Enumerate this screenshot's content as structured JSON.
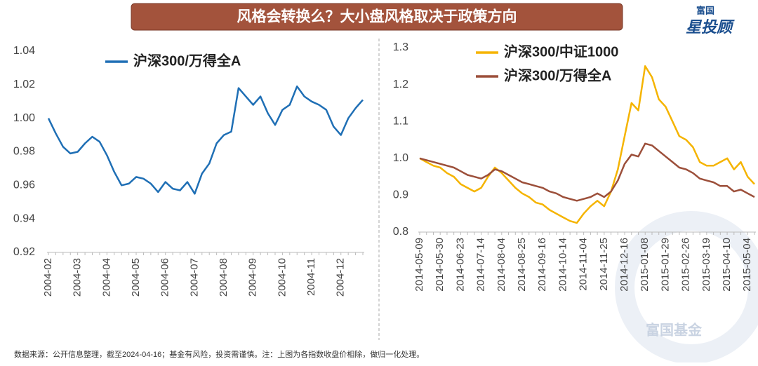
{
  "title": "风格会转换么？大小盘风格取决于政策方向",
  "logo": {
    "top": "富国",
    "main": "星投顾",
    "watermark": "富国基金"
  },
  "footnote": "数据来源：公开信息整理，截至2024-04-16；基金有风险，投资需谨慎。注：上图为各指数收盘价相除，做归一化处理。",
  "chart_data": [
    {
      "type": "line",
      "legend": "top-left",
      "grid": false,
      "categories": [
        "2004-02",
        null,
        null,
        null,
        "2004-03",
        null,
        null,
        null,
        "2004-04",
        null,
        null,
        null,
        "2004-05",
        null,
        null,
        null,
        "2004-06",
        null,
        null,
        null,
        "2004-07",
        null,
        null,
        null,
        "2004-08",
        null,
        null,
        null,
        "2004-09",
        null,
        null,
        null,
        "2004-10",
        null,
        null,
        null,
        "2004-11",
        null,
        null,
        null,
        "2004-12",
        null,
        null,
        null
      ],
      "series": [
        {
          "name": "沪深300/万得全A",
          "color": "#1f6fb5",
          "values": [
            1.0,
            0.991,
            0.983,
            0.979,
            0.98,
            0.985,
            0.989,
            0.986,
            0.978,
            0.968,
            0.96,
            0.961,
            0.965,
            0.964,
            0.961,
            0.956,
            0.962,
            0.958,
            0.957,
            0.962,
            0.955,
            0.967,
            0.973,
            0.985,
            0.99,
            0.992,
            1.018,
            1.013,
            1.008,
            1.013,
            1.003,
            0.996,
            1.005,
            1.008,
            1.019,
            1.013,
            1.01,
            1.008,
            1.005,
            0.995,
            0.99,
            1.0,
            1.006,
            1.011
          ]
        }
      ],
      "ylim": [
        0.92,
        1.04
      ],
      "yticks": [
        0.92,
        0.94,
        0.96,
        0.98,
        {
          "value": 1,
          "label": "1.00"
        },
        1.02,
        1.04
      ]
    },
    {
      "type": "line",
      "legend": "top-left",
      "grid": false,
      "categories": [
        "2014-05-09",
        null,
        null,
        "2014-05-30",
        null,
        null,
        "2014-06-23",
        null,
        null,
        "2014-07-14",
        null,
        null,
        "2014-08-04",
        null,
        null,
        "2014-08-25",
        null,
        null,
        "2014-09-16",
        null,
        null,
        "2014-10-14",
        null,
        null,
        "2014-11-04",
        null,
        null,
        "2014-11-25",
        null,
        null,
        "2014-12-16",
        null,
        null,
        "2015-01-08",
        null,
        null,
        "2015-01-29",
        null,
        null,
        "2015-02-26",
        null,
        null,
        "2015-03-19",
        null,
        null,
        "2015-04-10",
        null,
        null,
        "2015-05-04",
        null
      ],
      "series": [
        {
          "name": "沪深300/中证1000",
          "color": "#f5b400",
          "values": [
            1.0,
            0.99,
            0.98,
            0.975,
            0.96,
            0.95,
            0.93,
            0.92,
            0.91,
            0.92,
            0.95,
            0.975,
            0.96,
            0.94,
            0.92,
            0.905,
            0.895,
            0.88,
            0.875,
            0.86,
            0.85,
            0.84,
            0.83,
            0.825,
            0.85,
            0.87,
            0.885,
            0.87,
            0.91,
            0.97,
            1.06,
            1.15,
            1.13,
            1.25,
            1.22,
            1.16,
            1.14,
            1.1,
            1.06,
            1.05,
            1.03,
            0.99,
            0.98,
            0.98,
            0.99,
            1.0,
            0.97,
            0.99,
            0.95,
            0.93
          ]
        },
        {
          "name": "沪深300/万得全A",
          "color": "#9c4f3a",
          "values": [
            1.0,
            0.995,
            0.99,
            0.985,
            0.98,
            0.975,
            0.965,
            0.955,
            0.95,
            0.945,
            0.955,
            0.97,
            0.965,
            0.955,
            0.945,
            0.935,
            0.93,
            0.925,
            0.92,
            0.91,
            0.905,
            0.895,
            0.89,
            0.885,
            0.89,
            0.895,
            0.905,
            0.895,
            0.91,
            0.94,
            0.985,
            1.01,
            1.005,
            1.04,
            1.035,
            1.02,
            1.005,
            0.99,
            0.975,
            0.97,
            0.96,
            0.945,
            0.94,
            0.935,
            0.925,
            0.925,
            0.91,
            0.915,
            0.905,
            0.895
          ]
        }
      ],
      "ylim": [
        0.8,
        1.3
      ],
      "yticks": [
        0.8,
        0.9,
        {
          "value": 1,
          "label": "1.0"
        },
        1.1,
        1.2,
        1.3
      ]
    }
  ]
}
